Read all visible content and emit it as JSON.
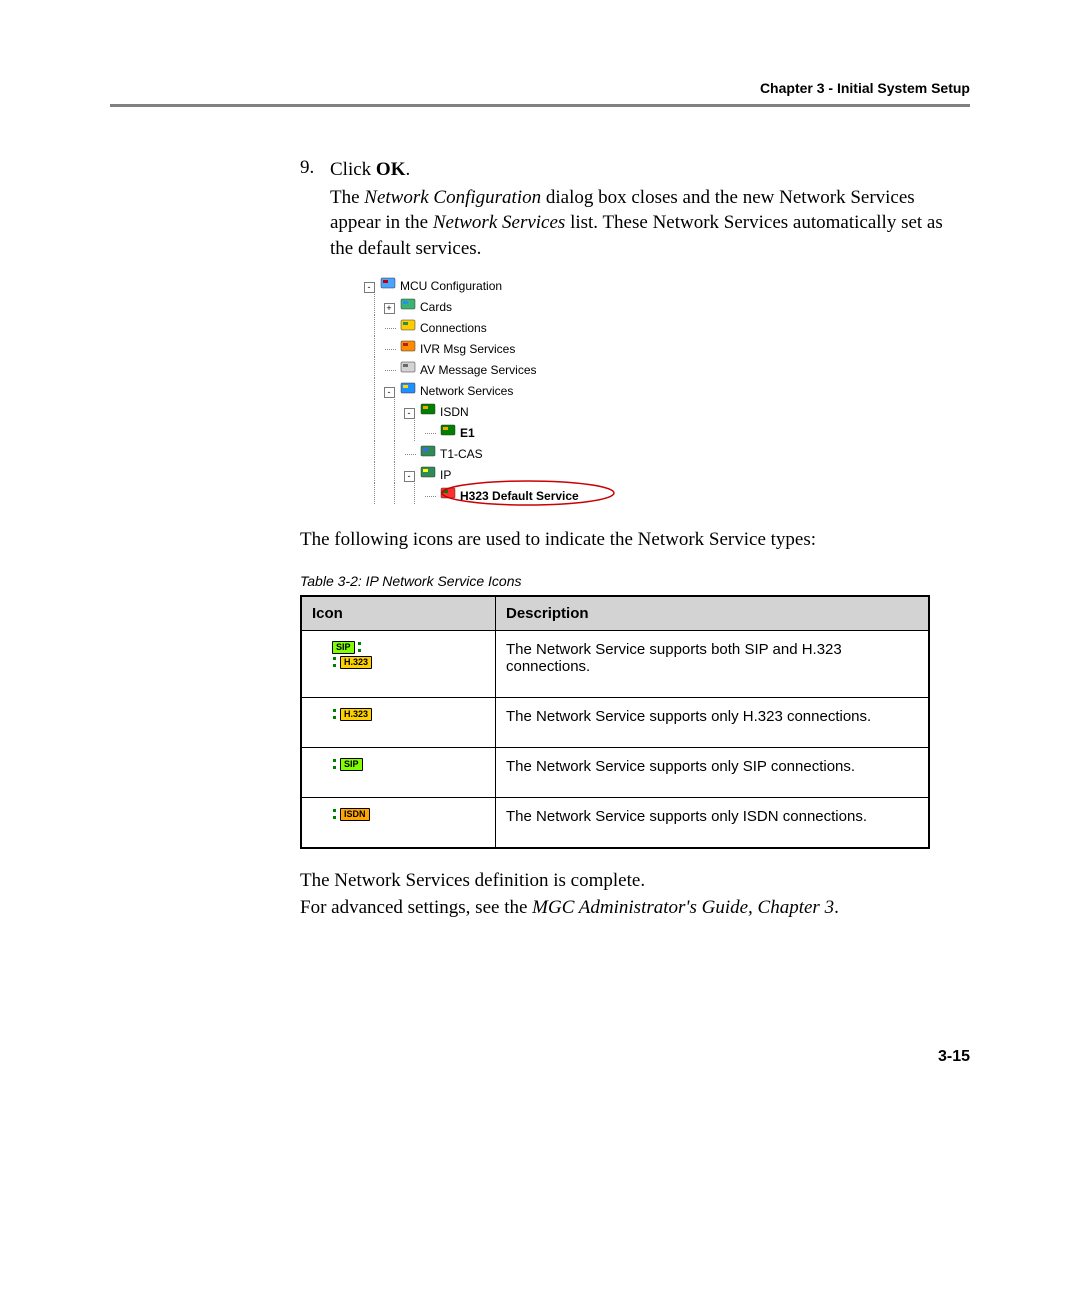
{
  "header": {
    "chapter_label": "Chapter 3 - Initial System Setup"
  },
  "step": {
    "number": "9.",
    "line1_a": "Click ",
    "line1_b": "OK",
    "line1_c": ".",
    "line2": "The Network Configuration dialog box closes and the new Network Services appear in the Network Services list. These Network Services automatically set as the default services.",
    "italic_net_conf": "Network Configuration",
    "italic_net_svcs": "Network Services"
  },
  "tree": {
    "nodes": [
      {
        "indent": 0,
        "box": "-",
        "icon_bg": "#4aa3ff",
        "icon_fg": "#c00000",
        "label": "MCU Configuration"
      },
      {
        "indent": 1,
        "box": "+",
        "icon_bg": "#3cb371",
        "icon_fg": "#1e90ff",
        "label": "Cards"
      },
      {
        "indent": 1,
        "box": "",
        "icon_bg": "#ffcc00",
        "icon_fg": "#2e8b57",
        "label": "Connections"
      },
      {
        "indent": 1,
        "box": "",
        "icon_bg": "#ff8c00",
        "icon_fg": "#b22222",
        "label": "IVR Msg Services"
      },
      {
        "indent": 1,
        "box": "",
        "icon_bg": "#d3d3d3",
        "icon_fg": "#696969",
        "label": "AV Message Services"
      },
      {
        "indent": 1,
        "box": "-",
        "icon_bg": "#1e90ff",
        "icon_fg": "#ffd700",
        "label": "Network Services"
      },
      {
        "indent": 2,
        "box": "-",
        "icon_bg": "#008000",
        "icon_fg": "#ffa500",
        "label": "ISDN"
      },
      {
        "indent": 3,
        "box": "",
        "icon_bg": "#008000",
        "icon_fg": "#ffa500",
        "label": "E1",
        "bold": true
      },
      {
        "indent": 2,
        "box": "",
        "icon_bg": "#2e8b57",
        "icon_fg": "#4169e1",
        "label": "T1-CAS"
      },
      {
        "indent": 2,
        "box": "-",
        "icon_bg": "#2e8b57",
        "icon_fg": "#ffff00",
        "label": "IP"
      },
      {
        "indent": 3,
        "box": "",
        "icon_bg": "#ff3030",
        "icon_fg": "#008000",
        "label": "H323 Default Service",
        "bold": true,
        "circled": true
      }
    ],
    "circle_color": "#cc0000"
  },
  "after_image": "The following icons are used to indicate the Network Service types:",
  "table": {
    "caption": "Table 3-2: IP Network Service Icons",
    "columns": [
      "Icon",
      "Description"
    ],
    "rows": [
      {
        "icon_kind": "sip_h323",
        "desc": "The Network Service supports both SIP and H.323 connections."
      },
      {
        "icon_kind": "h323",
        "desc": "The Network Service supports only H.323 connections."
      },
      {
        "icon_kind": "sip",
        "desc": "The Network Service supports only SIP connections."
      },
      {
        "icon_kind": "isdn",
        "desc": "The Network Service supports only ISDN connections."
      }
    ],
    "badge_text": {
      "sip": "SIP",
      "h323": "H.323",
      "isdn": "ISDN"
    }
  },
  "after_table": {
    "p1": "The Network Services definition is complete.",
    "p2_a": "For advanced settings, see the ",
    "p2_b": "MGC Administrator's Guide, Chapter 3",
    "p2_c": "."
  },
  "page_number": "3-15",
  "colors": {
    "rule": "#808080",
    "header_bg": "#d3d3d3"
  }
}
